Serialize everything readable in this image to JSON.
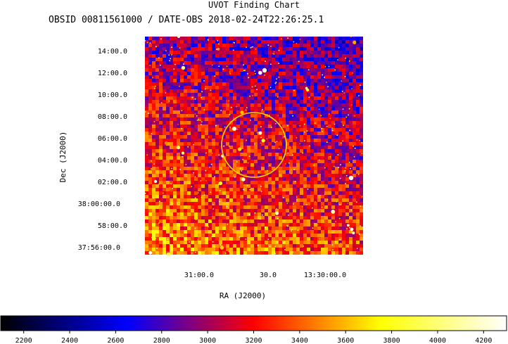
{
  "chart_data": {
    "type": "heatmap",
    "title": "UVOT Finding Chart",
    "subtitle": "OBSID 00811561000 / DATE-OBS 2018-02-24T22:26:25.1",
    "xlabel": "RA (J2000)",
    "ylabel": "Dec (J2000)",
    "x_ticks": [
      "31:00.0",
      "30.0",
      "13:30:00.0"
    ],
    "y_ticks": [
      "14:00.0",
      "12:00.0",
      "10:00.0",
      "08:00.0",
      "06:00.0",
      "04:00.0",
      "02:00.0",
      "38:00:00.0",
      "58:00.0",
      "37:56:00.0"
    ],
    "colorbar": {
      "min": 2100,
      "max": 4300,
      "ticks": [
        2200,
        2400,
        2600,
        2800,
        3000,
        3200,
        3400,
        3600,
        3800,
        4000,
        4200
      ]
    },
    "colors": {
      "gradient": [
        "#000000",
        "#0000ff",
        "#ff0000",
        "#ffff00",
        "#ffffff"
      ],
      "circle": "#ffd700"
    },
    "grid": false,
    "legend": "colorbar-bottom"
  }
}
